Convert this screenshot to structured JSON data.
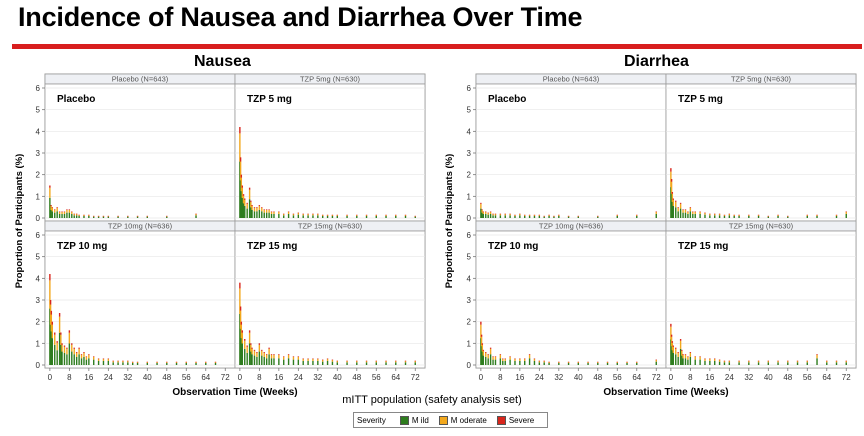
{
  "slide_title": "Incidence of Nausea and Diarrhea Over Time",
  "footnote": "mITT population (safety analysis set)",
  "legend": {
    "title": "Severity",
    "items": [
      {
        "label": "M ild",
        "color": "#2e7d1e"
      },
      {
        "label": "M oderate",
        "color": "#f2a81d"
      },
      {
        "label": "Severe",
        "color": "#d8261c"
      }
    ]
  },
  "chart_data": [
    {
      "type": "bar",
      "title": "Nausea",
      "xlabel": "Observation Time (Weeks)",
      "ylabel": "Proportion of Participants (%)",
      "ylim": [
        0,
        6
      ],
      "yticks": [
        "0",
        "1",
        "2",
        "3",
        "4",
        "5",
        "6"
      ],
      "xlim": [
        -2,
        76
      ],
      "xticks": [
        "0",
        "8",
        "16",
        "24",
        "32",
        "40",
        "48",
        "56",
        "64",
        "72"
      ],
      "grid": true,
      "panels": [
        {
          "strip": "Placebo (N=643)",
          "label": "Placebo",
          "peaks": [
            [
              0,
              1.5
            ],
            [
              0.5,
              0.6
            ],
            [
              1,
              0.5
            ],
            [
              2,
              0.4
            ],
            [
              3,
              0.5
            ],
            [
              4,
              0.3
            ],
            [
              5,
              0.3
            ],
            [
              6,
              0.3
            ],
            [
              7,
              0.4
            ],
            [
              8,
              0.4
            ],
            [
              9,
              0.3
            ],
            [
              10,
              0.2
            ],
            [
              11,
              0.2
            ],
            [
              12,
              0.15
            ],
            [
              14,
              0.15
            ],
            [
              16,
              0.15
            ],
            [
              18,
              0.1
            ],
            [
              20,
              0.1
            ],
            [
              22,
              0.1
            ],
            [
              24,
              0.1
            ],
            [
              28,
              0.1
            ],
            [
              32,
              0.1
            ],
            [
              36,
              0.1
            ],
            [
              40,
              0.1
            ],
            [
              48,
              0.1
            ],
            [
              60,
              0.2
            ]
          ]
        },
        {
          "strip": "TZP 5mg (N=630)",
          "label": "TZP 5 mg",
          "peaks": [
            [
              0,
              4.2
            ],
            [
              0.3,
              2.8
            ],
            [
              0.6,
              2.0
            ],
            [
              1,
              1.5
            ],
            [
              1.5,
              1.1
            ],
            [
              2,
              0.9
            ],
            [
              3,
              0.7
            ],
            [
              4,
              1.4
            ],
            [
              4.5,
              0.8
            ],
            [
              5,
              0.6
            ],
            [
              6,
              0.5
            ],
            [
              7,
              0.5
            ],
            [
              8,
              0.6
            ],
            [
              9,
              0.5
            ],
            [
              10,
              0.4
            ],
            [
              11,
              0.4
            ],
            [
              12,
              0.4
            ],
            [
              13,
              0.3
            ],
            [
              14,
              0.3
            ],
            [
              16,
              0.3
            ],
            [
              18,
              0.2
            ],
            [
              20,
              0.3
            ],
            [
              22,
              0.2
            ],
            [
              24,
              0.25
            ],
            [
              26,
              0.2
            ],
            [
              28,
              0.2
            ],
            [
              30,
              0.2
            ],
            [
              32,
              0.2
            ],
            [
              34,
              0.15
            ],
            [
              36,
              0.15
            ],
            [
              38,
              0.15
            ],
            [
              40,
              0.15
            ],
            [
              44,
              0.15
            ],
            [
              48,
              0.15
            ],
            [
              52,
              0.15
            ],
            [
              56,
              0.15
            ],
            [
              60,
              0.15
            ],
            [
              64,
              0.15
            ],
            [
              68,
              0.15
            ],
            [
              72,
              0.1
            ]
          ]
        },
        {
          "strip": "TZP 10mg (N=636)",
          "label": "TZP 10 mg",
          "peaks": [
            [
              0,
              4.2
            ],
            [
              0.3,
              3.0
            ],
            [
              0.6,
              2.5
            ],
            [
              1,
              2.0
            ],
            [
              2,
              1.5
            ],
            [
              3,
              1.1
            ],
            [
              4,
              2.4
            ],
            [
              4.5,
              1.5
            ],
            [
              5,
              1.0
            ],
            [
              6,
              0.9
            ],
            [
              7,
              0.8
            ],
            [
              8,
              1.6
            ],
            [
              9,
              1.0
            ],
            [
              10,
              0.8
            ],
            [
              11,
              0.6
            ],
            [
              12,
              0.8
            ],
            [
              13,
              0.5
            ],
            [
              14,
              0.6
            ],
            [
              15,
              0.4
            ],
            [
              16,
              0.5
            ],
            [
              18,
              0.4
            ],
            [
              20,
              0.3
            ],
            [
              22,
              0.3
            ],
            [
              24,
              0.3
            ],
            [
              26,
              0.2
            ],
            [
              28,
              0.2
            ],
            [
              30,
              0.2
            ],
            [
              32,
              0.2
            ],
            [
              34,
              0.15
            ],
            [
              36,
              0.15
            ],
            [
              40,
              0.15
            ],
            [
              44,
              0.15
            ],
            [
              48,
              0.15
            ],
            [
              52,
              0.15
            ],
            [
              56,
              0.15
            ],
            [
              60,
              0.15
            ],
            [
              64,
              0.15
            ],
            [
              68,
              0.15
            ]
          ]
        },
        {
          "strip": "TZP 15mg (N=630)",
          "label": "TZP 15 mg",
          "peaks": [
            [
              0,
              3.8
            ],
            [
              0.3,
              2.7
            ],
            [
              0.6,
              2.0
            ],
            [
              1,
              1.6
            ],
            [
              2,
              1.2
            ],
            [
              3,
              0.9
            ],
            [
              4,
              1.6
            ],
            [
              4.5,
              1.0
            ],
            [
              5,
              0.8
            ],
            [
              6,
              0.7
            ],
            [
              7,
              0.6
            ],
            [
              8,
              1.0
            ],
            [
              9,
              0.7
            ],
            [
              10,
              0.6
            ],
            [
              11,
              0.5
            ],
            [
              12,
              0.8
            ],
            [
              13,
              0.5
            ],
            [
              14,
              0.5
            ],
            [
              16,
              0.5
            ],
            [
              18,
              0.4
            ],
            [
              20,
              0.5
            ],
            [
              22,
              0.4
            ],
            [
              24,
              0.4
            ],
            [
              26,
              0.3
            ],
            [
              28,
              0.3
            ],
            [
              30,
              0.3
            ],
            [
              32,
              0.3
            ],
            [
              34,
              0.25
            ],
            [
              36,
              0.3
            ],
            [
              38,
              0.25
            ],
            [
              40,
              0.2
            ],
            [
              44,
              0.2
            ],
            [
              48,
              0.2
            ],
            [
              52,
              0.2
            ],
            [
              56,
              0.2
            ],
            [
              60,
              0.2
            ],
            [
              64,
              0.2
            ],
            [
              68,
              0.2
            ],
            [
              72,
              0.2
            ]
          ]
        }
      ]
    },
    {
      "type": "bar",
      "title": "Diarrhea",
      "xlabel": "Observation Time (Weeks)",
      "ylabel": "Proportion of Participants (%)",
      "ylim": [
        0,
        6
      ],
      "yticks": [
        "0",
        "1",
        "2",
        "3",
        "4",
        "5",
        "6"
      ],
      "xlim": [
        -2,
        76
      ],
      "xticks": [
        "0",
        "8",
        "16",
        "24",
        "32",
        "40",
        "48",
        "56",
        "64",
        "72"
      ],
      "grid": true,
      "panels": [
        {
          "strip": "Placebo (N=643)",
          "label": "Placebo",
          "peaks": [
            [
              0,
              0.7
            ],
            [
              0.5,
              0.4
            ],
            [
              1,
              0.3
            ],
            [
              2,
              0.3
            ],
            [
              3,
              0.25
            ],
            [
              4,
              0.3
            ],
            [
              5,
              0.2
            ],
            [
              6,
              0.2
            ],
            [
              8,
              0.2
            ],
            [
              10,
              0.2
            ],
            [
              12,
              0.2
            ],
            [
              14,
              0.15
            ],
            [
              16,
              0.2
            ],
            [
              18,
              0.15
            ],
            [
              20,
              0.15
            ],
            [
              22,
              0.15
            ],
            [
              24,
              0.15
            ],
            [
              26,
              0.1
            ],
            [
              28,
              0.15
            ],
            [
              30,
              0.1
            ],
            [
              32,
              0.15
            ],
            [
              36,
              0.1
            ],
            [
              40,
              0.1
            ],
            [
              48,
              0.1
            ],
            [
              56,
              0.15
            ],
            [
              64,
              0.15
            ],
            [
              72,
              0.3
            ]
          ]
        },
        {
          "strip": "TZP 5mg (N=630)",
          "label": "TZP 5 mg",
          "peaks": [
            [
              0,
              2.3
            ],
            [
              0.3,
              1.8
            ],
            [
              0.6,
              1.2
            ],
            [
              1,
              0.9
            ],
            [
              2,
              0.8
            ],
            [
              3,
              0.5
            ],
            [
              4,
              0.7
            ],
            [
              5,
              0.4
            ],
            [
              6,
              0.4
            ],
            [
              7,
              0.3
            ],
            [
              8,
              0.5
            ],
            [
              9,
              0.3
            ],
            [
              10,
              0.3
            ],
            [
              12,
              0.3
            ],
            [
              14,
              0.25
            ],
            [
              16,
              0.2
            ],
            [
              18,
              0.2
            ],
            [
              20,
              0.2
            ],
            [
              22,
              0.15
            ],
            [
              24,
              0.2
            ],
            [
              26,
              0.15
            ],
            [
              28,
              0.15
            ],
            [
              32,
              0.15
            ],
            [
              36,
              0.15
            ],
            [
              40,
              0.1
            ],
            [
              44,
              0.15
            ],
            [
              48,
              0.1
            ],
            [
              56,
              0.15
            ],
            [
              60,
              0.15
            ],
            [
              68,
              0.15
            ],
            [
              72,
              0.3
            ]
          ]
        },
        {
          "strip": "TZP 10mg (N=636)",
          "label": "TZP 10 mg",
          "peaks": [
            [
              0,
              2.0
            ],
            [
              0.3,
              1.4
            ],
            [
              0.6,
              1.0
            ],
            [
              1,
              0.7
            ],
            [
              2,
              0.6
            ],
            [
              3,
              0.5
            ],
            [
              4,
              0.8
            ],
            [
              5,
              0.4
            ],
            [
              6,
              0.4
            ],
            [
              8,
              0.5
            ],
            [
              9,
              0.3
            ],
            [
              10,
              0.3
            ],
            [
              12,
              0.4
            ],
            [
              14,
              0.3
            ],
            [
              16,
              0.3
            ],
            [
              18,
              0.3
            ],
            [
              20,
              0.5
            ],
            [
              22,
              0.3
            ],
            [
              24,
              0.2
            ],
            [
              26,
              0.2
            ],
            [
              28,
              0.15
            ],
            [
              32,
              0.15
            ],
            [
              36,
              0.15
            ],
            [
              40,
              0.15
            ],
            [
              44,
              0.15
            ],
            [
              48,
              0.15
            ],
            [
              52,
              0.15
            ],
            [
              56,
              0.15
            ],
            [
              60,
              0.15
            ],
            [
              64,
              0.15
            ],
            [
              72,
              0.25
            ]
          ]
        },
        {
          "strip": "TZP 15mg (N=630)",
          "label": "TZP 15 mg",
          "peaks": [
            [
              0,
              1.9
            ],
            [
              0.3,
              1.4
            ],
            [
              0.6,
              1.1
            ],
            [
              1,
              0.9
            ],
            [
              2,
              0.8
            ],
            [
              3,
              0.6
            ],
            [
              4,
              1.2
            ],
            [
              4.5,
              0.7
            ],
            [
              5,
              0.5
            ],
            [
              6,
              0.5
            ],
            [
              7,
              0.4
            ],
            [
              8,
              0.6
            ],
            [
              10,
              0.4
            ],
            [
              12,
              0.4
            ],
            [
              14,
              0.3
            ],
            [
              16,
              0.3
            ],
            [
              18,
              0.3
            ],
            [
              20,
              0.25
            ],
            [
              22,
              0.2
            ],
            [
              24,
              0.2
            ],
            [
              28,
              0.2
            ],
            [
              32,
              0.2
            ],
            [
              36,
              0.2
            ],
            [
              40,
              0.2
            ],
            [
              44,
              0.2
            ],
            [
              48,
              0.2
            ],
            [
              52,
              0.2
            ],
            [
              56,
              0.2
            ],
            [
              60,
              0.5
            ],
            [
              64,
              0.2
            ],
            [
              68,
              0.2
            ],
            [
              72,
              0.2
            ]
          ]
        }
      ]
    }
  ]
}
